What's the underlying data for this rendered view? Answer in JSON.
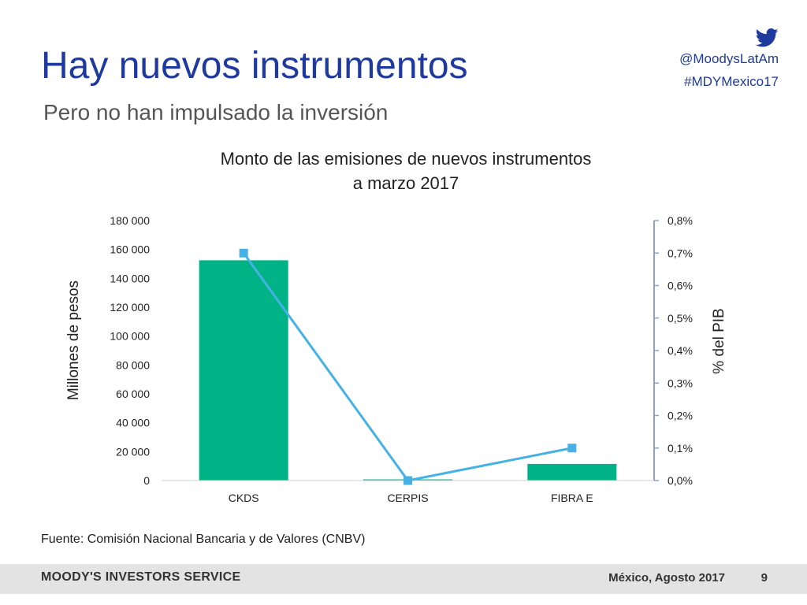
{
  "slide": {
    "title": "Hay nuevos instrumentos",
    "subtitle": "Pero no han impulsado la inversión",
    "social_handle": "@MoodysLatAm",
    "hashtag": "#MDYMexico17",
    "social_icon": "twitter-icon",
    "source": "Fuente: Comisión Nacional Bancaria y de Valores (CNBV)",
    "footer_brand": "MOODY'S INVESTORS SERVICE",
    "footer_place_date": "México, Agosto 2017",
    "page_number": "9"
  },
  "colors": {
    "title": "#1f3a9e",
    "bar": "#00b386",
    "line": "#45b1e4",
    "axis": "#8ca0c8",
    "footer_bg": "#e3e3e3"
  },
  "chart_data": {
    "type": "bar",
    "title": "Monto de las emisiones de nuevos instrumentos a marzo 2017",
    "title_lines": [
      "Monto de las emisiones de nuevos instrumentos",
      "a marzo 2017"
    ],
    "categories": [
      "CKDS",
      "CERPIS",
      "FIBRA E"
    ],
    "series": [
      {
        "type": "bar",
        "axis": "left",
        "values": [
          152500,
          800,
          11500
        ]
      },
      {
        "type": "line",
        "axis": "right",
        "values": [
          0.7,
          0.0,
          0.1
        ]
      }
    ],
    "ylabel": "Millones de pesos",
    "ylim": [
      0,
      180000
    ],
    "yticks": [
      0,
      20000,
      40000,
      60000,
      80000,
      100000,
      120000,
      140000,
      160000,
      180000
    ],
    "ytick_labels": [
      "0",
      "20 000",
      "40 000",
      "60 000",
      "80 000",
      "100 000",
      "120 000",
      "140 000",
      "160 000",
      "180 000"
    ],
    "y2label": "% del PIB",
    "y2lim": [
      0,
      0.8
    ],
    "y2ticks": [
      0,
      0.1,
      0.2,
      0.3,
      0.4,
      0.5,
      0.6,
      0.7,
      0.8
    ],
    "y2tick_labels": [
      "0,0%",
      "0,1%",
      "0,2%",
      "0,3%",
      "0,4%",
      "0,5%",
      "0,6%",
      "0,7%",
      "0,8%"
    ],
    "grid": false,
    "legend": "none"
  }
}
